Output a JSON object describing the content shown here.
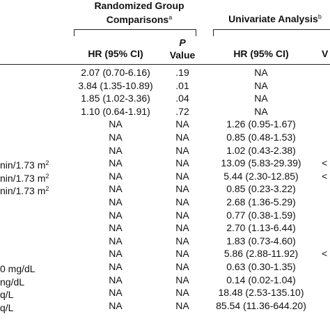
{
  "header": {
    "randomized_line1": "Randomized Group",
    "randomized_line2": "Comparisons",
    "randomized_sup": "a",
    "univariate": "Univariate Analysis",
    "univariate_sup": "b",
    "hr_label": "HR (95% CI)",
    "p_label_top": "P",
    "p_label_bottom": "Value",
    "hr2_label": "HR (95% CI)",
    "cut_col_label": "V"
  },
  "rows": [
    {
      "label": "",
      "label_sup": "",
      "hr1": "2.07 (0.70-6.16)",
      "p": ".19",
      "hr2": "NA",
      "cut": ""
    },
    {
      "label": "",
      "label_sup": "",
      "hr1": "3.84 (1.35-10.89)",
      "p": ".01",
      "hr2": "NA",
      "cut": ""
    },
    {
      "label": "",
      "label_sup": "",
      "hr1": "1.85 (1.02-3.36)",
      "p": ".04",
      "hr2": "NA",
      "cut": ""
    },
    {
      "label": "",
      "label_sup": "",
      "hr1": "1.10 (0.64-1.91)",
      "p": ".72",
      "hr2": "NA",
      "cut": ""
    },
    {
      "label": "",
      "label_sup": "",
      "hr1": "NA",
      "p": "NA",
      "hr2": "1.26 (0.95-1.67)",
      "cut": ""
    },
    {
      "label": "",
      "label_sup": "",
      "hr1": "NA",
      "p": "NA",
      "hr2": "0.85 (0.48-1.53)",
      "cut": ""
    },
    {
      "label": "",
      "label_sup": "",
      "hr1": "NA",
      "p": "NA",
      "hr2": "1.02 (0.43-2.38)",
      "cut": ""
    },
    {
      "label": "nin/1.73 m",
      "label_sup": "2",
      "hr1": "NA",
      "p": "NA",
      "hr2": "13.09 (5.83-29.39)",
      "cut": "<"
    },
    {
      "label": "nin/1.73 m",
      "label_sup": "2",
      "hr1": "NA",
      "p": "NA",
      "hr2": "5.44 (2.30-12.85)",
      "cut": "<"
    },
    {
      "label": "nin/1.73 m",
      "label_sup": "2",
      "hr1": "NA",
      "p": "NA",
      "hr2": "0.85 (0.23-3.22)",
      "cut": ""
    },
    {
      "label": "",
      "label_sup": "",
      "hr1": "NA",
      "p": "NA",
      "hr2": "2.68 (1.36-5.29)",
      "cut": ""
    },
    {
      "label": "",
      "label_sup": "",
      "hr1": "NA",
      "p": "NA",
      "hr2": "0.77 (0.38-1.59)",
      "cut": ""
    },
    {
      "label": "",
      "label_sup": "",
      "hr1": "NA",
      "p": "NA",
      "hr2": "2.70 (1.13-6.44)",
      "cut": ""
    },
    {
      "label": "",
      "label_sup": "",
      "hr1": "NA",
      "p": "NA",
      "hr2": "1.83 (0.73-4.60)",
      "cut": ""
    },
    {
      "label": "",
      "label_sup": "",
      "hr1": "NA",
      "p": "NA",
      "hr2": "5.86 (2.88-11.92)",
      "cut": "<"
    },
    {
      "label": "0 mg/dL",
      "label_sup": "",
      "hr1": "NA",
      "p": "NA",
      "hr2": "0.63 (0.30-1.35)",
      "cut": ""
    },
    {
      "label": "ng/dL",
      "label_sup": "",
      "hr1": "NA",
      "p": "NA",
      "hr2": "0.14 (0.02-1.04)",
      "cut": ""
    },
    {
      "label": "q/L",
      "label_sup": "",
      "hr1": "NA",
      "p": "NA",
      "hr2": "18.48 (2.53-135.10)",
      "cut": ""
    },
    {
      "label": "q/L",
      "label_sup": "",
      "hr1": "NA",
      "p": "NA",
      "hr2": "85.54 (11.36-644.20)",
      "cut": ""
    }
  ]
}
